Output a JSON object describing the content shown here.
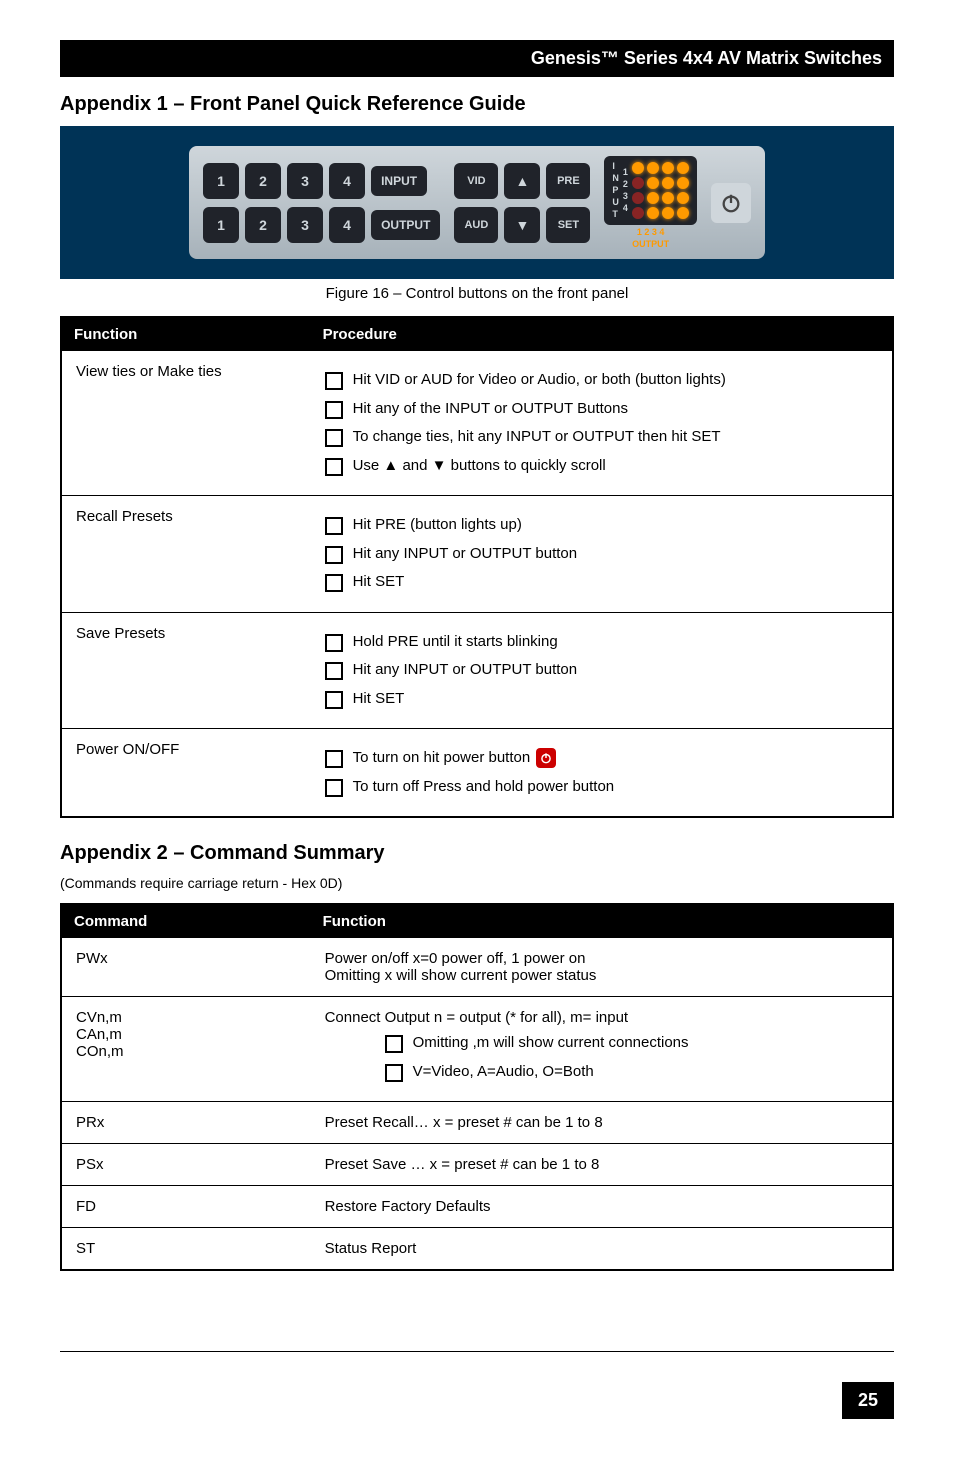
{
  "titlebar": "Genesis™ Series   4x4 AV Matrix Switches",
  "h_appendix1": "Appendix 1 – Front Panel Quick Reference Guide",
  "figcaption": "Figure 16 – Control buttons on the front panel",
  "panel": {
    "input_row": [
      "1",
      "2",
      "3",
      "4"
    ],
    "output_row": [
      "1",
      "2",
      "3",
      "4"
    ],
    "input_label": "INPUT",
    "output_label": "OUTPUT",
    "vid": "VID",
    "aud": "AUD",
    "up": "▲",
    "down": "▼",
    "pre": "PRE",
    "set": "SET",
    "side_chars": [
      "I",
      "N",
      "P",
      "U",
      "T"
    ],
    "side_nums": [
      "1",
      "2",
      "3",
      "4"
    ],
    "outnums": "1  2  3  4",
    "outlabel": "OUTPUT",
    "led_on": [
      0,
      1,
      2,
      3,
      5,
      6,
      7,
      9,
      10,
      11,
      13,
      14,
      15
    ],
    "colors": {
      "panel_bg": "#003356",
      "face": "#b8c1c8",
      "btn": "#20232a",
      "led_on": "#ff9a00",
      "led_off": "#882424"
    }
  },
  "table1": {
    "headers": [
      "Function",
      "Procedure"
    ],
    "rows": [
      {
        "fn": "View ties or Make ties",
        "items": [
          "Hit VID or AUD for Video or Audio, or both (button lights)",
          "Hit any of the INPUT or OUTPUT Buttons",
          "To change ties, hit any INPUT or OUTPUT then hit SET",
          "Use ▲ and ▼ buttons to quickly scroll"
        ]
      },
      {
        "fn": "Recall Presets",
        "items": [
          "Hit PRE (button lights up)",
          "Hit any INPUT or OUTPUT button",
          "Hit SET"
        ]
      },
      {
        "fn": "Save Presets",
        "items": [
          "Hold PRE until it starts blinking",
          "Hit any INPUT or OUTPUT button",
          "Hit SET"
        ]
      },
      {
        "fn": "Power ON/OFF",
        "items": [
          "To turn on hit power button",
          "To turn off Press and hold power button"
        ],
        "power_icon_idx": 0
      }
    ]
  },
  "h_appendix2": "Appendix 2 – Command Summary",
  "cr_note": "(Commands require carriage return - Hex 0D)",
  "table2": {
    "headers": [
      "Command",
      "Function"
    ],
    "rows": [
      {
        "cmd": "PWx",
        "fn_lines": [
          "Power on/off  x=0 power off, 1 power on",
          "Omitting x will show current power status"
        ]
      },
      {
        "cmd": "CVn,m\nCAn,m\nCOn,m",
        "fn_lines": [
          "Connect Output    n = output (* for all), m= input"
        ],
        "bullets": [
          "Omitting ,m will show current connections",
          "V=Video, A=Audio, O=Both"
        ]
      },
      {
        "cmd": "PRx",
        "fn_lines": [
          "Preset Recall…  x = preset # can be 1 to 8"
        ]
      },
      {
        "cmd": "PSx",
        "fn_lines": [
          "Preset Save    …  x = preset # can be 1 to 8"
        ]
      },
      {
        "cmd": "FD",
        "fn_lines": [
          "Restore Factory Defaults"
        ]
      },
      {
        "cmd": "ST",
        "fn_lines": [
          "Status Report"
        ]
      }
    ]
  },
  "pagenum": "25"
}
